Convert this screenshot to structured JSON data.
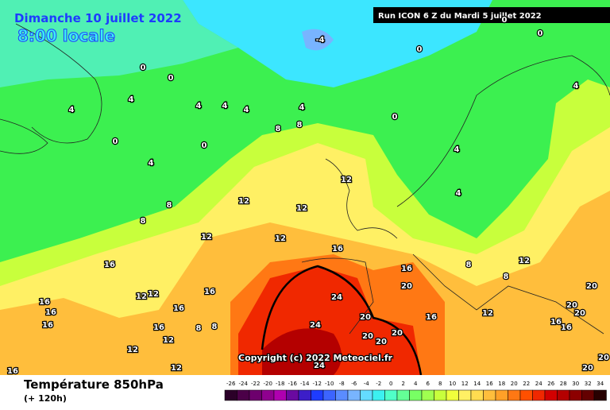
{
  "header": {
    "date": "Dimanche 10 juillet 2022",
    "time": "8:00 locale",
    "run": "Run ICON 6 Z du Mardi 5 juillet 2022"
  },
  "copyright": "Copyright (c) 2022 Meteociel.fr",
  "footer": {
    "title": "Température 850hPa",
    "lead": "(+ 120h)"
  },
  "scale": {
    "labels": [
      -26,
      -24,
      -22,
      -20,
      -18,
      -16,
      -14,
      -12,
      -10,
      -8,
      -6,
      -4,
      -2,
      0,
      2,
      4,
      6,
      8,
      10,
      12,
      14,
      16,
      18,
      20,
      22,
      24,
      26,
      28,
      30,
      32,
      34
    ],
    "colors": [
      "#2b0028",
      "#4b0048",
      "#6d006d",
      "#8f008f",
      "#b000b0",
      "#6a0aa0",
      "#3c1ec8",
      "#1e3cff",
      "#3c64ff",
      "#5a8cff",
      "#78b4ff",
      "#64dcff",
      "#3cf0f0",
      "#50ffc8",
      "#64ff96",
      "#78ff64",
      "#a0ff50",
      "#c8ff3c",
      "#f0ff3c",
      "#fff064",
      "#ffdc50",
      "#ffbe3c",
      "#ffa028",
      "#ff7814",
      "#ff5000",
      "#f02800",
      "#d20000",
      "#b40000",
      "#8c0000",
      "#640000",
      "#280000"
    ]
  },
  "contour_labels": [
    -4,
    0,
    0,
    0,
    0,
    0,
    0,
    0,
    0,
    4,
    4,
    4,
    4,
    4,
    4,
    4,
    4,
    4,
    4,
    8,
    8,
    8,
    8,
    8,
    8,
    8,
    8,
    12,
    12,
    12,
    12,
    12,
    12,
    12,
    12,
    12,
    12,
    12,
    12,
    16,
    16,
    16,
    16,
    16,
    16,
    16,
    16,
    16,
    16,
    16,
    16,
    16,
    20,
    20,
    20,
    20,
    20,
    20,
    20,
    20,
    20,
    20,
    24,
    24,
    24
  ]
}
